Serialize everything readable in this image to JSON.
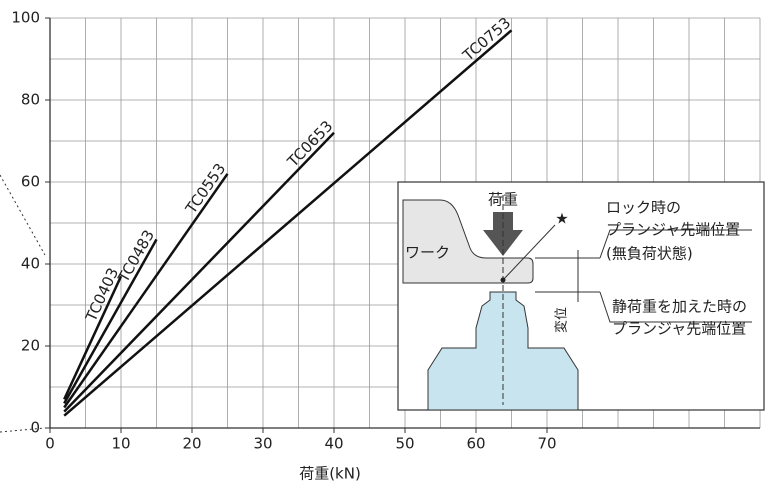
{
  "chart_data": {
    "type": "line",
    "xlabel": "荷重(kN)",
    "xlim": [
      0,
      100
    ],
    "ylim": [
      0,
      100
    ],
    "xticks": [
      0,
      10,
      20,
      30,
      40,
      50,
      60,
      70
    ],
    "yticks": [
      0,
      20,
      40,
      60,
      80,
      100
    ],
    "xgrid": [
      0,
      5,
      10,
      15,
      20,
      25,
      30,
      35,
      40,
      45,
      50,
      55,
      60,
      65,
      70,
      75,
      80,
      85,
      90,
      95,
      100
    ],
    "ygrid": [
      0,
      10,
      20,
      30,
      40,
      50,
      60,
      70,
      80,
      90,
      100
    ],
    "grid": true,
    "series": [
      {
        "name": "TC0403",
        "color": "#111111",
        "x": [
          2,
          10
        ],
        "values": [
          7,
          37
        ]
      },
      {
        "name": "TC0483",
        "color": "#111111",
        "x": [
          2,
          15
        ],
        "values": [
          6,
          46
        ]
      },
      {
        "name": "TC0553",
        "color": "#111111",
        "x": [
          2,
          25
        ],
        "values": [
          5,
          62
        ]
      },
      {
        "name": "TC0653",
        "color": "#111111",
        "x": [
          2,
          40
        ],
        "values": [
          4,
          72
        ]
      },
      {
        "name": "TC0753",
        "color": "#111111",
        "x": [
          2,
          65
        ],
        "values": [
          3,
          97
        ]
      }
    ]
  },
  "inset": {
    "load": "荷重",
    "work": "ワーク",
    "star": "★",
    "lock1": "ロック時の",
    "lock2": "プランジャ先端位置",
    "lock3": "(無負荷状態)",
    "static1": "静荷重を加えた時の",
    "static2": "プランジャ先端位置",
    "disp": "変位"
  }
}
